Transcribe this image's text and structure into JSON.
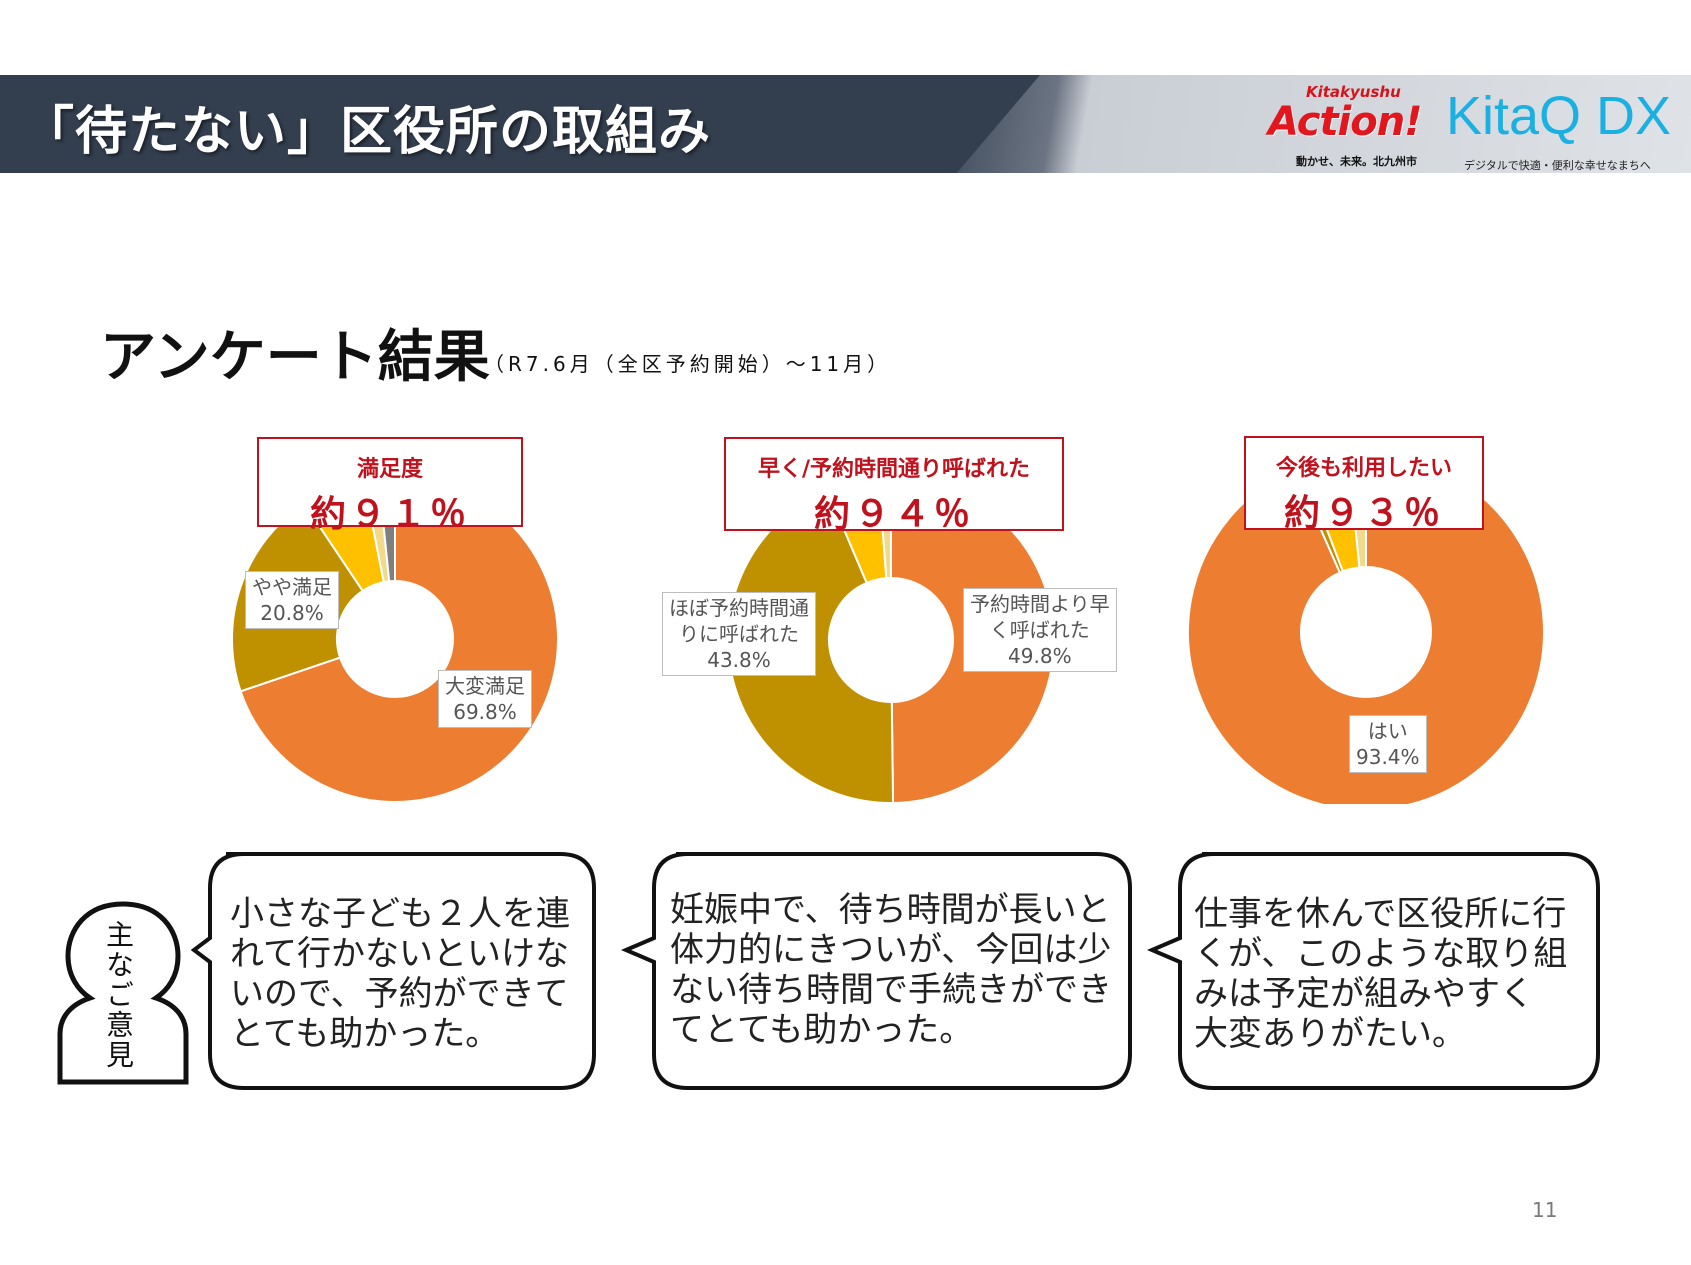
{
  "header": {
    "title": "「待たない」区役所の取組み",
    "logo_action_top": "Kitakyushu",
    "logo_action_main": "Action!",
    "logo_action_tagline": "動かせ、未来。北九州市",
    "logo_kitaq_main": "KitaQ DX",
    "logo_kitaq_tagline": "デジタルで快適・便利な幸せなまちへ"
  },
  "section": {
    "title": "アンケート結果",
    "subtitle": "（R7.6月（全区予約開始）～11月）"
  },
  "colors": {
    "orange": "#ed7d31",
    "olive": "#bf9000",
    "yellow": "#ffc000",
    "gray": "#7f7f7f",
    "accent_red": "#c0121c",
    "header_bg": "#333e4e"
  },
  "chart_data": [
    {
      "type": "pie",
      "title": "満足度",
      "headline": "約９１％",
      "donut": true,
      "slices": [
        {
          "label": "大変満足",
          "value": 69.8,
          "color": "#ed7d31",
          "data_label": "69.8%"
        },
        {
          "label": "やや満足",
          "value": 20.8,
          "color": "#bf9000",
          "data_label": "20.8%"
        },
        {
          "label": "",
          "value": 6.3,
          "color": "#ffc000"
        },
        {
          "label": "",
          "value": 1.5,
          "color": "#f2d98c"
        },
        {
          "label": "",
          "value": 1.6,
          "color": "#7f7f7f"
        }
      ]
    },
    {
      "type": "pie",
      "title": "早く/予約時間通り呼ばれた",
      "headline": "約９４％",
      "donut": true,
      "slices": [
        {
          "label": "予約時間より早く呼ばれた",
          "value": 49.8,
          "color": "#ed7d31",
          "data_label": "49.8%",
          "label_lines": [
            "予約時間より早",
            "く呼ばれた"
          ]
        },
        {
          "label": "ほぼ予約時間通りに呼ばれた",
          "value": 43.8,
          "color": "#bf9000",
          "data_label": "43.8%",
          "label_lines": [
            "ほぼ予約時間通",
            "りに呼ばれた"
          ]
        },
        {
          "label": "",
          "value": 5.2,
          "color": "#ffc000"
        },
        {
          "label": "",
          "value": 1.2,
          "color": "#f2d98c"
        }
      ]
    },
    {
      "type": "pie",
      "title": "今後も利用したい",
      "headline": "約９３％",
      "donut": true,
      "slices": [
        {
          "label": "はい",
          "value": 93.4,
          "color": "#ed7d31",
          "data_label": "93.4%"
        },
        {
          "label": "",
          "value": 0.8,
          "color": "#bf9000"
        },
        {
          "label": "",
          "value": 4.2,
          "color": "#ffc000"
        },
        {
          "label": "",
          "value": 1.6,
          "color": "#f2d98c"
        }
      ]
    }
  ],
  "opinions": {
    "label": "主なご意見",
    "items": [
      "小さな子ども２人を連\nれて行かないといけな\nいので、予約ができて\nとても助かった。",
      "妊娠中で、待ち時間が長いと\n体力的にきついが、今回は少\nない待ち時間で手続きができ\nてとても助かった。",
      "仕事を休んで区役所に行\nくが、このような取り組\nみは予定が組みやすく\n大変ありがたい。"
    ]
  },
  "page_number": "11"
}
